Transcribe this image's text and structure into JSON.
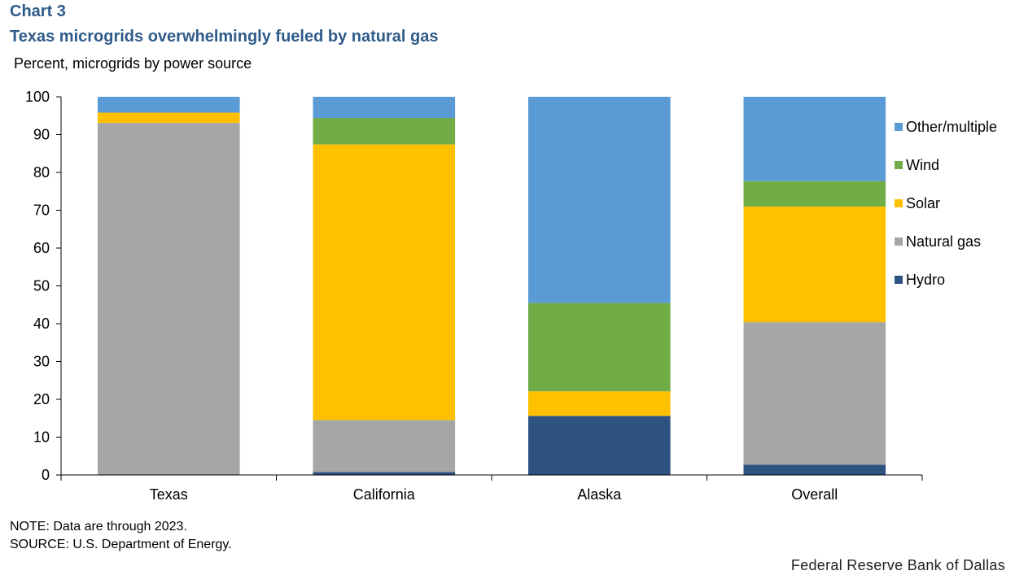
{
  "header": {
    "chart_number": "Chart 3",
    "title": "Texas microgrids overwhelmingly fueled by natural gas",
    "y_unit": "Percent, microgrids by power source"
  },
  "notes": {
    "note": "NOTE: Data are through 2023.",
    "source": "SOURCE: U.S. Department of Energy."
  },
  "footer": {
    "brand": "Federal Reserve Bank of Dallas"
  },
  "chart_data": {
    "type": "bar",
    "stacked": true,
    "categories": [
      "Texas",
      "California",
      "Alaska",
      "Overall"
    ],
    "series": [
      {
        "name": "Hydro",
        "color": "#2e5282",
        "values": [
          0,
          0.8,
          15.6,
          2.7
        ]
      },
      {
        "name": "Natural gas",
        "color": "#a6a6a6",
        "values": [
          93.1,
          13.7,
          0,
          37.7
        ]
      },
      {
        "name": "Solar",
        "color": "#ffc000",
        "values": [
          2.7,
          72.9,
          6.5,
          30.6
        ]
      },
      {
        "name": "Wind",
        "color": "#70ad47",
        "values": [
          0,
          7.0,
          23.4,
          6.7
        ]
      },
      {
        "name": "Other/multiple",
        "color": "#5b9bd5",
        "values": [
          4.2,
          5.6,
          54.5,
          22.3
        ]
      }
    ],
    "ylim": [
      0,
      100
    ],
    "yticks": [
      "0",
      "10",
      "20",
      "30",
      "40",
      "50",
      "60",
      "70",
      "80",
      "90",
      "100"
    ],
    "legend_position": "right",
    "legend_order": [
      "Other/multiple",
      "Wind",
      "Solar",
      "Natural gas",
      "Hydro"
    ],
    "grid": false
  }
}
